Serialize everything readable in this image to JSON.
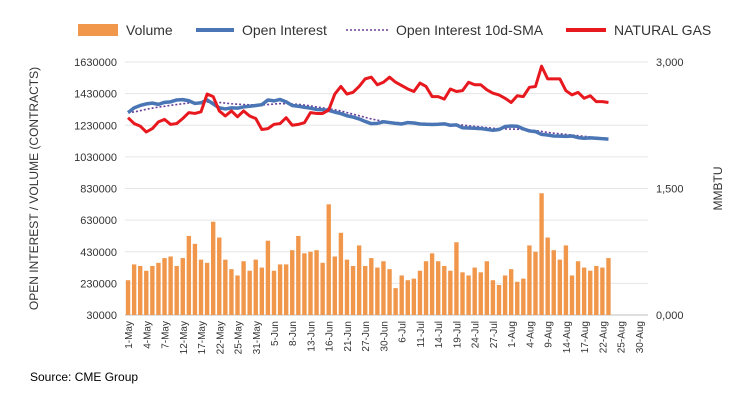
{
  "chart_data": {
    "type": "combo",
    "legend": [
      "Volume",
      "Open Interest",
      "Open Interest 10d-SMA",
      "NATURAL GAS"
    ],
    "legend_position": "top",
    "colors": {
      "volume": "#f0974b",
      "oi": "#4a76b5",
      "sma": "#6a3d9a",
      "gas": "#e8181f",
      "grid": "#e6e6e6"
    },
    "left_axis": {
      "label": "OPEN INTEREST / VOLUME (CONTRACTS)",
      "min": 30000,
      "max": 1630000,
      "ticks": [
        "1630000",
        "1430000",
        "1230000",
        "1030000",
        "830000",
        "630000",
        "430000",
        "230000",
        "30000"
      ],
      "tick_values": [
        1630000,
        1430000,
        1230000,
        1030000,
        830000,
        630000,
        430000,
        230000,
        30000
      ]
    },
    "right_axis": {
      "label": "MMBTU",
      "min": 0,
      "max": 3000,
      "ticks": [
        "3,000",
        "1,500",
        "0,000"
      ],
      "tick_values": [
        3000,
        1500,
        0
      ]
    },
    "x_labels": [
      "1-May",
      "4-May",
      "7-May",
      "12-May",
      "17-May",
      "22-May",
      "25-May",
      "31-May",
      "5-Jun",
      "8-Jun",
      "13-Jun",
      "16-Jun",
      "21-Jun",
      "27-Jun",
      "30-Jun",
      "6-Jul",
      "11-Jul",
      "14-Jul",
      "19-Jul",
      "24-Jul",
      "27-Jul",
      "1-Aug",
      "4-Aug",
      "9-Aug",
      "14-Aug",
      "17-Aug",
      "22-Aug",
      "25-Aug",
      "30-Aug"
    ],
    "x_label_index": [
      0,
      3,
      6,
      9,
      12,
      15,
      18,
      21,
      24,
      27,
      30,
      33,
      36,
      39,
      42,
      45,
      48,
      51,
      54,
      57,
      60,
      63,
      66,
      69,
      72,
      75,
      78,
      81,
      84
    ],
    "n_slots": 86,
    "volume": [
      250000,
      350000,
      340000,
      310000,
      340000,
      360000,
      390000,
      400000,
      340000,
      390000,
      530000,
      480000,
      380000,
      360000,
      620000,
      520000,
      380000,
      320000,
      280000,
      370000,
      310000,
      380000,
      330000,
      500000,
      310000,
      350000,
      350000,
      440000,
      530000,
      420000,
      430000,
      440000,
      360000,
      730000,
      400000,
      550000,
      380000,
      340000,
      470000,
      340000,
      390000,
      330000,
      370000,
      320000,
      200000,
      280000,
      250000,
      260000,
      310000,
      370000,
      420000,
      370000,
      340000,
      310000,
      490000,
      300000,
      280000,
      330000,
      300000,
      370000,
      250000,
      220000,
      280000,
      320000,
      240000,
      260000,
      470000,
      430000,
      800000,
      520000,
      440000,
      380000,
      470000,
      280000,
      370000,
      330000,
      310000,
      340000,
      330000,
      390000
    ],
    "open_interest": [
      1310000,
      1340000,
      1355000,
      1365000,
      1370000,
      1362000,
      1375000,
      1378000,
      1390000,
      1392000,
      1385000,
      1368000,
      1372000,
      1390000,
      1365000,
      1340000,
      1333000,
      1340000,
      1338000,
      1346000,
      1350000,
      1355000,
      1360000,
      1390000,
      1384000,
      1393000,
      1378000,
      1355000,
      1350000,
      1344000,
      1338000,
      1330000,
      1328000,
      1324000,
      1313000,
      1304000,
      1290000,
      1282000,
      1270000,
      1254000,
      1240000,
      1242000,
      1252000,
      1247000,
      1242000,
      1238000,
      1247000,
      1244000,
      1238000,
      1236000,
      1235000,
      1236000,
      1239000,
      1230000,
      1232000,
      1214000,
      1213000,
      1211000,
      1209000,
      1204000,
      1198000,
      1203000,
      1222000,
      1225000,
      1224000,
      1207000,
      1194000,
      1190000,
      1172000,
      1168000,
      1162000,
      1161000,
      1160000,
      1162000,
      1152000,
      1148000,
      1150000,
      1148000,
      1145000,
      1142000
    ],
    "oi_sma": [
      1310000,
      1314000,
      1322000,
      1331000,
      1338000,
      1345000,
      1350000,
      1356000,
      1361000,
      1366000,
      1371000,
      1373000,
      1374000,
      1376000,
      1376000,
      1374000,
      1370000,
      1366000,
      1363000,
      1361000,
      1359000,
      1359000,
      1359000,
      1361000,
      1364000,
      1367000,
      1366000,
      1364000,
      1362000,
      1358000,
      1352000,
      1346000,
      1340000,
      1334000,
      1328000,
      1320000,
      1310000,
      1300000,
      1290000,
      1280000,
      1270000,
      1262000,
      1256000,
      1251000,
      1248000,
      1245000,
      1244000,
      1243000,
      1242000,
      1240000,
      1239000,
      1238000,
      1237000,
      1236000,
      1235000,
      1231000,
      1227000,
      1223000,
      1219000,
      1215000,
      1211000,
      1208000,
      1207000,
      1206000,
      1205000,
      1203000,
      1200000,
      1196000,
      1191000,
      1185000,
      1180000,
      1176000,
      1172000,
      1168000,
      1164000,
      1160000,
      1156000,
      1153000,
      1150000,
      1147000
    ],
    "natural_gas": [
      2340,
      2270,
      2240,
      2170,
      2210,
      2290,
      2320,
      2260,
      2270,
      2330,
      2400,
      2390,
      2410,
      2620,
      2590,
      2420,
      2360,
      2420,
      2350,
      2420,
      2360,
      2330,
      2200,
      2210,
      2260,
      2270,
      2340,
      2250,
      2260,
      2280,
      2400,
      2390,
      2390,
      2430,
      2620,
      2710,
      2620,
      2640,
      2710,
      2800,
      2820,
      2730,
      2760,
      2820,
      2760,
      2720,
      2680,
      2650,
      2750,
      2710,
      2590,
      2590,
      2560,
      2680,
      2650,
      2660,
      2760,
      2730,
      2730,
      2670,
      2630,
      2610,
      2570,
      2520,
      2600,
      2590,
      2700,
      2710,
      2950,
      2800,
      2800,
      2800,
      2660,
      2610,
      2640,
      2570,
      2600,
      2530,
      2530,
      2520
    ]
  },
  "footer": {
    "source": "Source: CME Group"
  }
}
